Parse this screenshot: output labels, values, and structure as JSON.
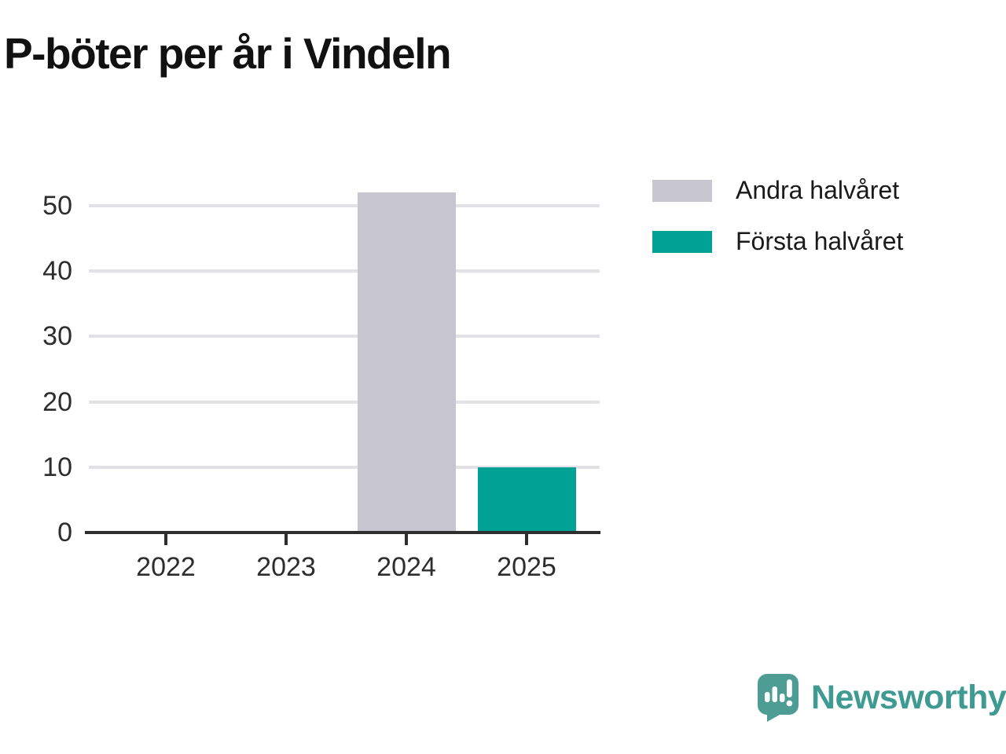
{
  "header": {
    "title": "P-böter per år i Vindeln"
  },
  "chart_data": {
    "type": "bar",
    "title": "P-böter per år i Vindeln",
    "categories": [
      "2022",
      "2023",
      "2024",
      "2025"
    ],
    "series": [
      {
        "name": "Andra halvåret",
        "color": "#c7c5d0",
        "values": [
          0,
          0,
          52,
          0
        ]
      },
      {
        "name": "Första halvåret",
        "color": "#00a296",
        "values": [
          0,
          0,
          0,
          10
        ]
      }
    ],
    "xlabel": "",
    "ylabel": "",
    "ylim": [
      0,
      52
    ],
    "yticks": [
      0,
      10,
      20,
      30,
      40,
      50
    ],
    "grid": true,
    "legend_position": "top-right"
  },
  "branding": {
    "name": "Newsworthy",
    "text_color": "#3f9a92",
    "icon_color": "#4d9d95",
    "icon": "newsworthy-speech-bubble-chart-icon"
  }
}
